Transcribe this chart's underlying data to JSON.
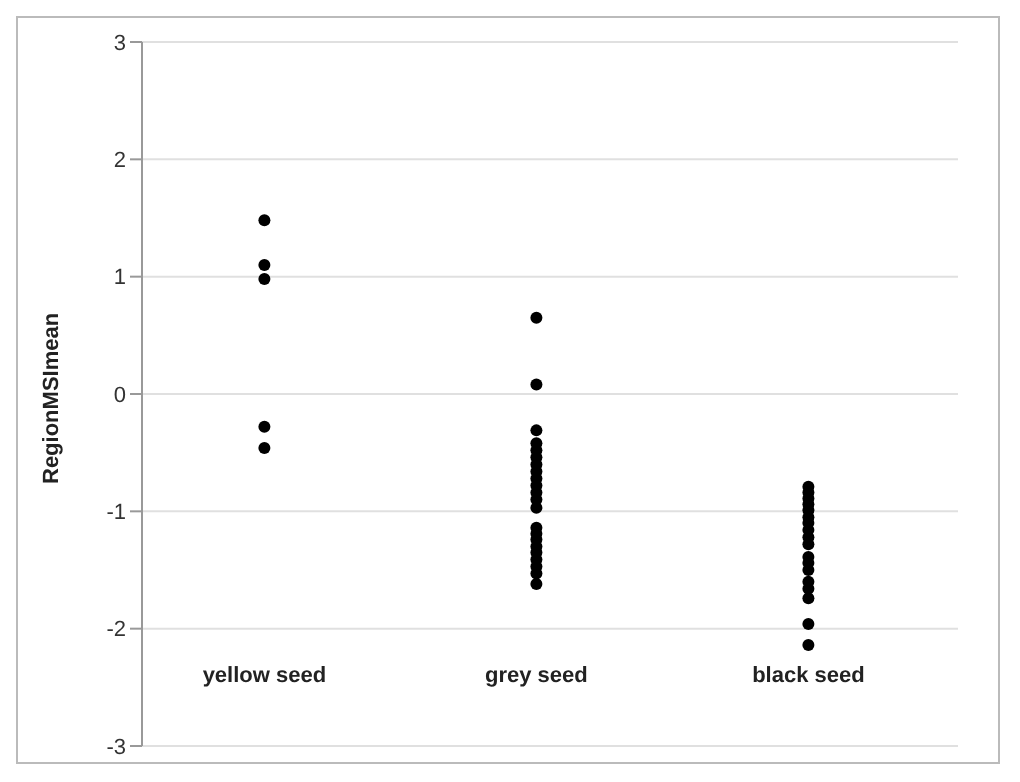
{
  "chart_data": {
    "type": "scatter",
    "ylabel": "RegionMSImean",
    "categories": [
      "yellow seed",
      "grey seed",
      "black seed"
    ],
    "series": [
      {
        "color": "#000000",
        "x": [
          "yellow seed",
          "yellow seed",
          "yellow seed",
          "yellow seed",
          "yellow seed",
          "grey seed",
          "grey seed",
          "grey seed",
          "grey seed",
          "grey seed",
          "grey seed",
          "grey seed",
          "grey seed",
          "grey seed",
          "grey seed",
          "grey seed",
          "grey seed",
          "grey seed",
          "grey seed",
          "grey seed",
          "grey seed",
          "grey seed",
          "grey seed",
          "grey seed",
          "grey seed",
          "grey seed",
          "grey seed",
          "black seed",
          "black seed",
          "black seed",
          "black seed",
          "black seed",
          "black seed",
          "black seed",
          "black seed",
          "black seed",
          "black seed",
          "black seed",
          "black seed",
          "black seed",
          "black seed",
          "black seed",
          "black seed",
          "black seed",
          "black seed"
        ],
        "values": [
          1.48,
          1.1,
          0.98,
          -0.28,
          -0.46,
          0.65,
          0.08,
          -0.31,
          -0.42,
          -0.48,
          -0.54,
          -0.6,
          -0.66,
          -0.72,
          -0.78,
          -0.84,
          -0.9,
          -0.97,
          -1.14,
          -1.19,
          -1.24,
          -1.3,
          -1.35,
          -1.41,
          -1.47,
          -1.53,
          -1.62,
          -0.79,
          -0.84,
          -0.89,
          -0.94,
          -0.99,
          -1.05,
          -1.1,
          -1.16,
          -1.22,
          -1.28,
          -1.39,
          -1.44,
          -1.5,
          -1.6,
          -1.66,
          -1.74,
          -1.96,
          -2.14
        ]
      }
    ],
    "ylim": [
      -3,
      3
    ],
    "yticks": [
      -3,
      -2,
      -1,
      0,
      1,
      2,
      3
    ],
    "grid": "y",
    "marker": "circle",
    "legend": false
  }
}
